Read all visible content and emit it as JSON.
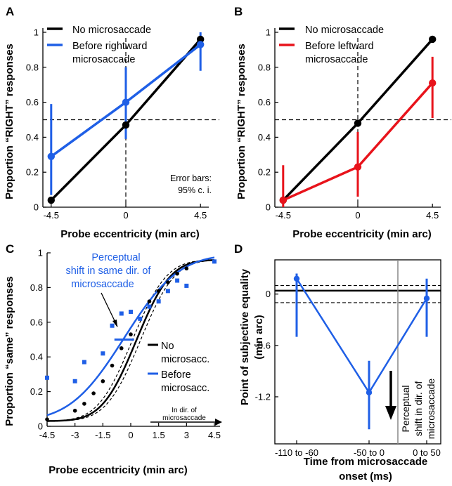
{
  "colors": {
    "black": "#000000",
    "blue": "#1f5fe6",
    "red": "#e8131b",
    "gray": "#888888"
  },
  "chart_data": [
    {
      "panel": "A",
      "type": "line",
      "x": [
        -4.5,
        0,
        4.5
      ],
      "x_ticks": [
        "-4.5",
        "0",
        "4.5"
      ],
      "y_ticks": [
        "0",
        "0.2",
        "0.4",
        "0.6",
        "0.8",
        "1"
      ],
      "xlabel": "Probe eccentricity (min arc)",
      "ylabel": "Proportion “RIGHT” responses",
      "xlim": [
        -5,
        5
      ],
      "ylim": [
        0,
        1
      ],
      "legend": [
        "No microsaccade",
        "Before rightward",
        "microsaccade"
      ],
      "annotation": [
        "Error bars:",
        "95% c. i."
      ],
      "series": [
        {
          "name": "No microsaccade",
          "color": "#000000",
          "values": [
            0.04,
            0.47,
            0.96
          ]
        },
        {
          "name": "Before rightward microsaccade",
          "color": "#1f5fe6",
          "values": [
            0.29,
            0.6,
            0.93
          ],
          "ci_low": [
            0.07,
            0.39,
            0.78
          ],
          "ci_high": [
            0.59,
            0.8,
            1.0
          ]
        }
      ],
      "reference_lines": {
        "h": 0.5,
        "v": 0
      }
    },
    {
      "panel": "B",
      "type": "line",
      "x": [
        -4.5,
        0,
        4.5
      ],
      "x_ticks": [
        "-4.5",
        "0",
        "4.5"
      ],
      "y_ticks": [
        "0",
        "0.2",
        "0.4",
        "0.6",
        "0.8",
        "1"
      ],
      "xlabel": "Probe eccentricity (min arc)",
      "ylabel": "Proportion “RIGHT” responses",
      "xlim": [
        -5,
        5
      ],
      "ylim": [
        0,
        1
      ],
      "legend": [
        "No microsaccade",
        "Before leftward",
        "microsaccade"
      ],
      "series": [
        {
          "name": "No microsaccade",
          "color": "#000000",
          "values": [
            0.04,
            0.48,
            0.96
          ]
        },
        {
          "name": "Before leftward microsaccade",
          "color": "#e8131b",
          "values": [
            0.04,
            0.23,
            0.71
          ],
          "ci_low": [
            0.0,
            0.06,
            0.51
          ],
          "ci_high": [
            0.24,
            0.43,
            0.86
          ]
        }
      ],
      "reference_lines": {
        "h": 0.5,
        "v": 0
      }
    },
    {
      "panel": "C",
      "type": "scatter",
      "x_ticks": [
        "-4.5",
        "-3",
        "-1.5",
        "0",
        "1.5",
        "3",
        "4.5"
      ],
      "y_ticks": [
        "0",
        "0.2",
        "0.4",
        "0.6",
        "0.8",
        "1"
      ],
      "xlabel": "Probe eccentricity (min arc)",
      "ylabel": "Proportion “same” responses",
      "xlim": [
        -4.5,
        4.5
      ],
      "ylim": [
        0,
        1
      ],
      "annotation": [
        "Perceptual",
        "shift in same dir. of",
        "microsaccade"
      ],
      "direction_label": [
        "In dir. of",
        "microsaccade"
      ],
      "legend": [
        [
          "No",
          "microsacc."
        ],
        [
          "Before",
          "microsacc."
        ]
      ],
      "series": [
        {
          "name": "No microsacc.",
          "color": "#000000",
          "points": [
            [
              -4.5,
              0.04
            ],
            [
              -3,
              0.09
            ],
            [
              -2.5,
              0.13
            ],
            [
              -2,
              0.19
            ],
            [
              -1.5,
              0.26
            ],
            [
              -1,
              0.35
            ],
            [
              -0.5,
              0.45
            ],
            [
              0,
              0.53
            ],
            [
              0.5,
              0.62
            ],
            [
              1,
              0.72
            ],
            [
              1.5,
              0.78
            ],
            [
              2,
              0.83
            ],
            [
              2.5,
              0.88
            ],
            [
              3,
              0.91
            ],
            [
              4.5,
              0.95
            ]
          ],
          "fit": {
            "mu": 0.3,
            "sigma": 1.45,
            "lo": 0.03,
            "hi": 0.96
          }
        },
        {
          "name": "Before microsacc.",
          "color": "#1f5fe6",
          "points": [
            [
              -4.5,
              0.28
            ],
            [
              -3,
              0.26
            ],
            [
              -2.5,
              0.37
            ],
            [
              -1.5,
              0.42
            ],
            [
              -1,
              0.58
            ],
            [
              -0.5,
              0.65
            ],
            [
              0,
              0.66
            ],
            [
              0.5,
              0.62
            ],
            [
              1,
              0.69
            ],
            [
              1.5,
              0.72
            ],
            [
              2,
              0.78
            ],
            [
              2.5,
              0.84
            ],
            [
              3,
              0.81
            ],
            [
              4.5,
              0.95
            ]
          ],
          "fit": {
            "mu": -0.35,
            "sigma": 2.3,
            "lo": 0.03,
            "hi": 0.99
          }
        }
      ]
    },
    {
      "panel": "D",
      "type": "line",
      "categories": [
        "-110 to -60",
        "-50 to 0",
        "0 to 50"
      ],
      "xlabel": [
        "Time from microsaccade",
        "onset (ms)"
      ],
      "ylabel": [
        "Point of subjective equality",
        "(min arc)"
      ],
      "y_ticks": [
        "-1.2",
        "-0.6",
        "0"
      ],
      "ylim": [
        -1.75,
        0.4
      ],
      "annotation": [
        "Perceptual",
        "shift in dir. of",
        "microsaccade"
      ],
      "series": [
        {
          "name": "",
          "color": "#1f5fe6",
          "values": [
            0.18,
            -1.15,
            -0.05
          ],
          "ci_low": [
            -0.5,
            -1.58,
            -0.5
          ],
          "ci_high": [
            0.24,
            -0.78,
            0.18
          ]
        }
      ],
      "reference_lines": {
        "h": 0.04,
        "h_band": [
          -0.1,
          0.1
        ]
      }
    }
  ],
  "panel_labels": [
    "A",
    "B",
    "C",
    "D"
  ]
}
